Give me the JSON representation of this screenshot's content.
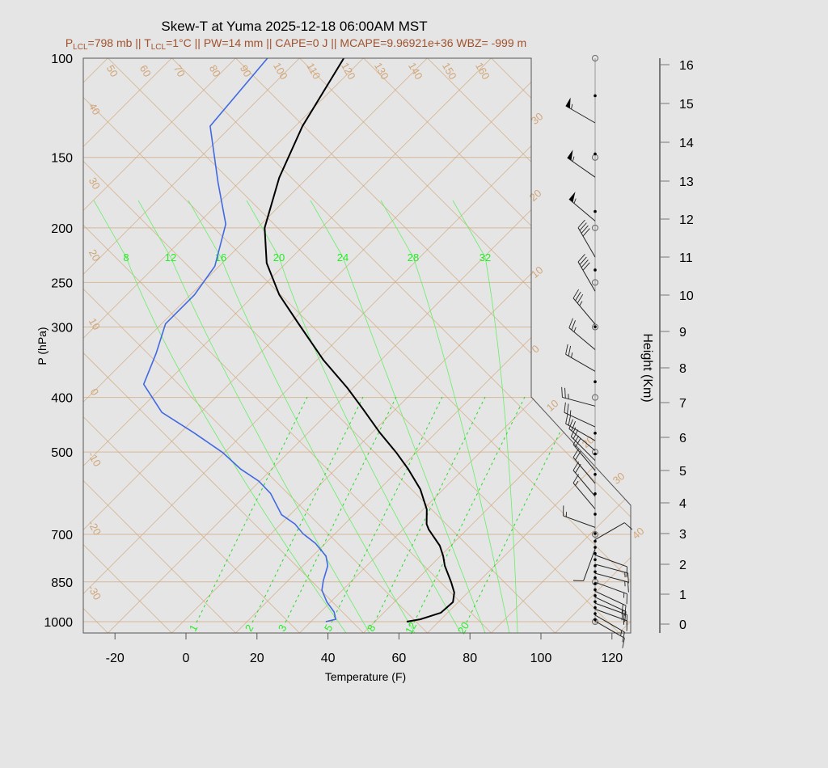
{
  "title": "Skew-T at Yuma 2025-12-18 06:00AM MST",
  "subtitle": {
    "p_lcl_prefix": "P",
    "p_lcl_sub": "LCL",
    "p_lcl_value": "=798 mb || T",
    "t_lcl_sub": "LCL",
    "rest": "=1°C || PW=14 mm || CAPE=0 J || MCAPE=9.96921e+36 WBZ= -999 m"
  },
  "chart_data": {
    "type": "line",
    "title": "Skew-T at Yuma 2025-12-18 06:00AM MST",
    "xlabel": "Temperature (F)",
    "ylabel": "P (hPa)",
    "y2label": "Height (Km)",
    "xlim": [
      -28,
      125
    ],
    "ylim": [
      1050,
      100
    ],
    "y_scale": "log",
    "x_ticks": [
      "-20",
      "0",
      "20",
      "40",
      "60",
      "80",
      "100",
      "120"
    ],
    "x_tick_values": [
      -20,
      0,
      20,
      40,
      60,
      80,
      100,
      120
    ],
    "y_ticks": [
      "100",
      "150",
      "200",
      "250",
      "300",
      "400",
      "500",
      "700",
      "850",
      "1000"
    ],
    "y_tick_values": [
      100,
      150,
      200,
      250,
      300,
      400,
      500,
      700,
      850,
      1000
    ],
    "y2_ticks": [
      "0",
      "1",
      "2",
      "3",
      "4",
      "5",
      "6",
      "7",
      "8",
      "9",
      "10",
      "11",
      "12",
      "13",
      "14",
      "15",
      "16"
    ],
    "series": [
      {
        "role": "temperature",
        "color": "#000000",
        "p": [
          1000,
          990,
          964,
          923,
          888,
          851,
          796,
          765,
          733,
          686,
          671,
          632,
          582,
          536,
          501,
          462,
          421,
          385,
          343,
          296,
          263,
          231,
          200,
          163,
          132,
          100
        ],
        "t_f": [
          59.0,
          62.2,
          66.1,
          66.5,
          64.2,
          60.4,
          54.0,
          50.8,
          46.9,
          39.2,
          37.1,
          33.0,
          25.5,
          16.4,
          8.4,
          -1.8,
          -12.8,
          -23.5,
          -38.3,
          -55.4,
          -69.0,
          -81.5,
          -92.0,
          -102,
          -110,
          -117.5
        ]
      },
      {
        "role": "dewpoint",
        "color": "#4169e1",
        "p": [
          1000,
          990,
          961,
          923,
          879,
          845,
          796,
          765,
          726,
          698,
          671,
          646,
          592,
          563,
          536,
          501,
          462,
          425,
          379,
          334,
          296,
          263,
          234,
          197,
          166,
          132,
          100
        ],
        "t_f": [
          36.2,
          38.3,
          35.8,
          31.0,
          26.2,
          23.9,
          21.0,
          17.8,
          11.2,
          5.0,
          0.0,
          -6.4,
          -15.5,
          -22.3,
          -30.8,
          -40.5,
          -54.2,
          -69.0,
          -82.0,
          -87.2,
          -92.9,
          -92.9,
          -95.2,
          -104,
          -118,
          -136,
          -139
        ]
      }
    ],
    "background_labels": {
      "top_tan": [
        "50",
        "60",
        "70",
        "80",
        "90",
        "100",
        "110",
        "120",
        "130",
        "140",
        "150",
        "160"
      ],
      "left_tan": [
        "40",
        "30",
        "20",
        "10",
        "0",
        "-10",
        "-20",
        "-30"
      ],
      "right_tan": [
        "30",
        "20",
        "10",
        "0",
        "10",
        "20",
        "30",
        "40"
      ],
      "moist_adiabats": [
        "8",
        "12",
        "16",
        "20",
        "24",
        "28",
        "32"
      ],
      "mixing_ratios": [
        "1",
        "2",
        "3",
        "5",
        "8",
        "12",
        "20"
      ]
    },
    "grid_colors": {
      "isolines": "#d2a679",
      "moist": "#66ee66",
      "mixing": "#22dd22"
    },
    "winds": {
      "units": "kt",
      "levels_km": [
        14.5,
        13.1,
        11.95,
        11.0,
        10.1,
        9.2,
        8.5,
        7.9,
        6.9,
        6.3,
        5.9,
        5.6,
        5.3,
        5.0,
        4.6,
        4.2,
        3.8,
        3.2,
        2.8,
        2.5,
        2.3,
        2.0,
        1.7,
        1.4,
        1.1,
        0.9,
        0.7,
        0.5,
        0.3,
        0.1
      ],
      "direction_deg": [
        300,
        305,
        310,
        330,
        330,
        320,
        310,
        300,
        285,
        295,
        300,
        310,
        315,
        320,
        320,
        320,
        320,
        290,
        60,
        200,
        110,
        105,
        105,
        110,
        115,
        115,
        110,
        110,
        120,
        120
      ],
      "speed_kt": [
        55,
        55,
        55,
        40,
        40,
        35,
        25,
        25,
        25,
        25,
        20,
        20,
        20,
        20,
        20,
        20,
        15,
        15,
        10,
        10,
        10,
        15,
        15,
        15,
        20,
        20,
        20,
        15,
        15,
        10
      ]
    },
    "level_dots_km": [
      15.2,
      13.7,
      12.2,
      10.66,
      9.13,
      7.6,
      6.12,
      5.5,
      4.88,
      4.28,
      3.63,
      3.0,
      2.75,
      2.55,
      2.35,
      2.15,
      1.95,
      1.75,
      1.55,
      1.35,
      1.15,
      0.95,
      0.75,
      0.55,
      0.35,
      0.15
    ]
  }
}
